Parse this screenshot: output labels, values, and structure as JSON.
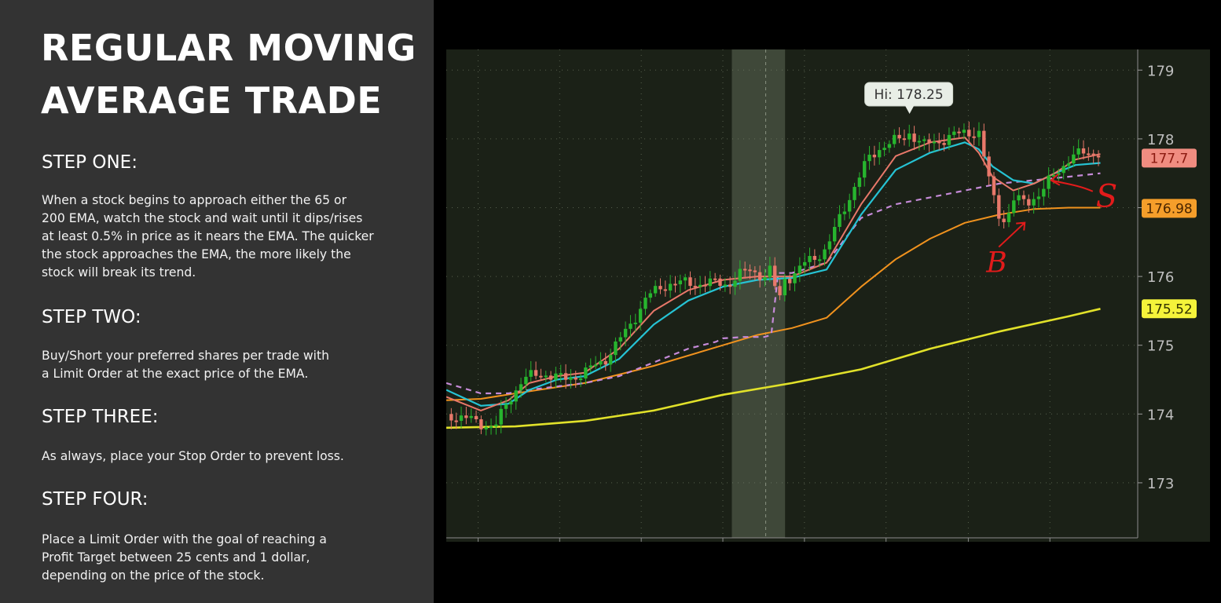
{
  "title": {
    "line1": "REGULAR MOVING",
    "line2": "AVERAGE TRADE"
  },
  "steps": [
    {
      "heading": "STEP ONE:",
      "body": "When a stock begins to approach either the 65 or\n200 EMA, watch the stock and wait until it dips/rises\nat least 0.5% in price as it nears the EMA. The quicker\nthe stock approaches the EMA, the more likely the\nstock will break its trend."
    },
    {
      "heading": "STEP TWO:",
      "body": "Buy/Short your preferred shares per trade with\na Limit Order at the exact price of the EMA."
    },
    {
      "heading": "STEP THREE:",
      "body": "As always, place your Stop Order to prevent loss."
    },
    {
      "heading": "STEP FOUR:",
      "body": "Place a Limit Order with the goal of reaching a\nProfit Target between 25 cents and 1 dollar,\ndepending on the price of the stock."
    }
  ],
  "colors": {
    "panel_bg": "#333333",
    "chart_bg": "#1b2117",
    "up": "#27b52e",
    "down": "#e8786a",
    "ema_fast": "#e8786a",
    "ema_mid": "#26c3d4",
    "ema_65": "#f0921e",
    "ema_200": "#e1e12a",
    "ema_dashed": "#c58ad8",
    "highlight": "#5d6a55",
    "annotation": "#e21b1b"
  },
  "chart_data": {
    "type": "line",
    "ylim": [
      172.2,
      179.3
    ],
    "x_range": [
      0,
      100
    ],
    "y_ticks": [
      179,
      178,
      177,
      176,
      175,
      174,
      173
    ],
    "highlight_span": [
      41.3,
      49.0
    ],
    "callout": {
      "text": "Hi: 178.25",
      "x": 67,
      "y": 178.25
    },
    "price_labels": [
      {
        "text": "177.7",
        "y": 177.72,
        "bg": "#f08c80",
        "fg": "#8b1a10"
      },
      {
        "text": "176.98",
        "y": 176.99,
        "bg": "#f59e2a",
        "fg": "#4a2600"
      },
      {
        "text": "175.52",
        "y": 175.53,
        "bg": "#f5f33a",
        "fg": "#333300"
      }
    ],
    "annotations": [
      {
        "text": "B",
        "x": 79,
        "y": 176.2
      },
      {
        "text": "S",
        "x": 98.5,
        "y": 177.1
      }
    ],
    "series": [
      {
        "key": "price",
        "x": [
          0,
          4,
          7,
          9,
          11,
          14,
          17,
          20,
          23,
          26,
          29,
          32,
          35,
          38,
          41,
          42,
          44,
          46,
          47,
          48,
          49,
          50,
          52,
          55,
          58,
          61,
          63,
          66,
          67,
          69,
          72,
          75,
          77,
          78,
          79,
          80,
          81,
          82,
          84,
          86,
          88,
          90,
          92,
          94,
          94.6
        ],
        "y": [
          174.0,
          173.9,
          173.8,
          174.2,
          174.5,
          174.6,
          174.5,
          174.6,
          174.8,
          175.2,
          175.7,
          175.9,
          175.9,
          175.9,
          175.9,
          176.0,
          176.1,
          176.0,
          176.1,
          175.6,
          176.0,
          176.0,
          176.2,
          176.4,
          177.1,
          177.7,
          177.9,
          178.0,
          178.1,
          177.9,
          178.0,
          178.1,
          178.1,
          177.6,
          177.2,
          176.9,
          176.8,
          177.1,
          177.1,
          177.2,
          177.5,
          177.7,
          177.8,
          177.8,
          177.8
        ]
      },
      {
        "key": "ema_fast",
        "x": [
          0,
          5,
          9,
          12,
          16,
          20,
          25,
          30,
          35,
          40,
          45,
          50,
          55,
          60,
          65,
          70,
          75,
          77,
          79,
          82,
          85,
          88,
          91,
          94.6
        ],
        "y": [
          174.25,
          174.05,
          174.2,
          174.45,
          174.55,
          174.6,
          174.95,
          175.5,
          175.8,
          175.95,
          176.0,
          176.0,
          176.2,
          177.05,
          177.75,
          177.95,
          178.02,
          177.8,
          177.45,
          177.25,
          177.35,
          177.5,
          177.7,
          177.78
        ]
      },
      {
        "key": "ema_mid",
        "x": [
          0,
          5,
          9,
          12,
          16,
          20,
          25,
          30,
          35,
          40,
          45,
          50,
          55,
          60,
          65,
          70,
          75,
          77,
          79,
          82,
          85,
          88,
          91,
          94.6
        ],
        "y": [
          174.35,
          174.12,
          174.15,
          174.35,
          174.5,
          174.55,
          174.8,
          175.3,
          175.65,
          175.85,
          175.95,
          175.98,
          176.1,
          176.9,
          177.55,
          177.8,
          177.95,
          177.85,
          177.6,
          177.4,
          177.35,
          177.5,
          177.62,
          177.65
        ]
      },
      {
        "key": "ema_dashed",
        "x": [
          0,
          5,
          9,
          12,
          20,
          25,
          30,
          35,
          39,
          40,
          43,
          46,
          47,
          48,
          50,
          55,
          60,
          65,
          70,
          75,
          80,
          85,
          90,
          94.6
        ],
        "y": [
          174.45,
          174.3,
          174.3,
          174.35,
          174.45,
          174.55,
          174.75,
          174.95,
          175.05,
          175.1,
          175.12,
          175.12,
          175.15,
          176.05,
          176.05,
          176.2,
          176.85,
          177.05,
          177.15,
          177.25,
          177.35,
          177.4,
          177.45,
          177.5
        ]
      },
      {
        "key": "ema_65",
        "x": [
          0,
          5,
          10,
          20,
          30,
          40,
          45,
          50,
          55,
          60,
          65,
          70,
          75,
          80,
          85,
          90,
          94.6
        ],
        "y": [
          174.2,
          174.22,
          174.3,
          174.45,
          174.7,
          175.0,
          175.15,
          175.25,
          175.4,
          175.85,
          176.25,
          176.55,
          176.78,
          176.9,
          176.98,
          177.0,
          177.0
        ]
      },
      {
        "key": "ema_200",
        "x": [
          0,
          10,
          20,
          30,
          40,
          50,
          60,
          70,
          80,
          90,
          94.6
        ],
        "y": [
          173.8,
          173.82,
          173.9,
          174.05,
          174.28,
          174.45,
          174.65,
          174.95,
          175.2,
          175.42,
          175.53
        ]
      }
    ]
  }
}
